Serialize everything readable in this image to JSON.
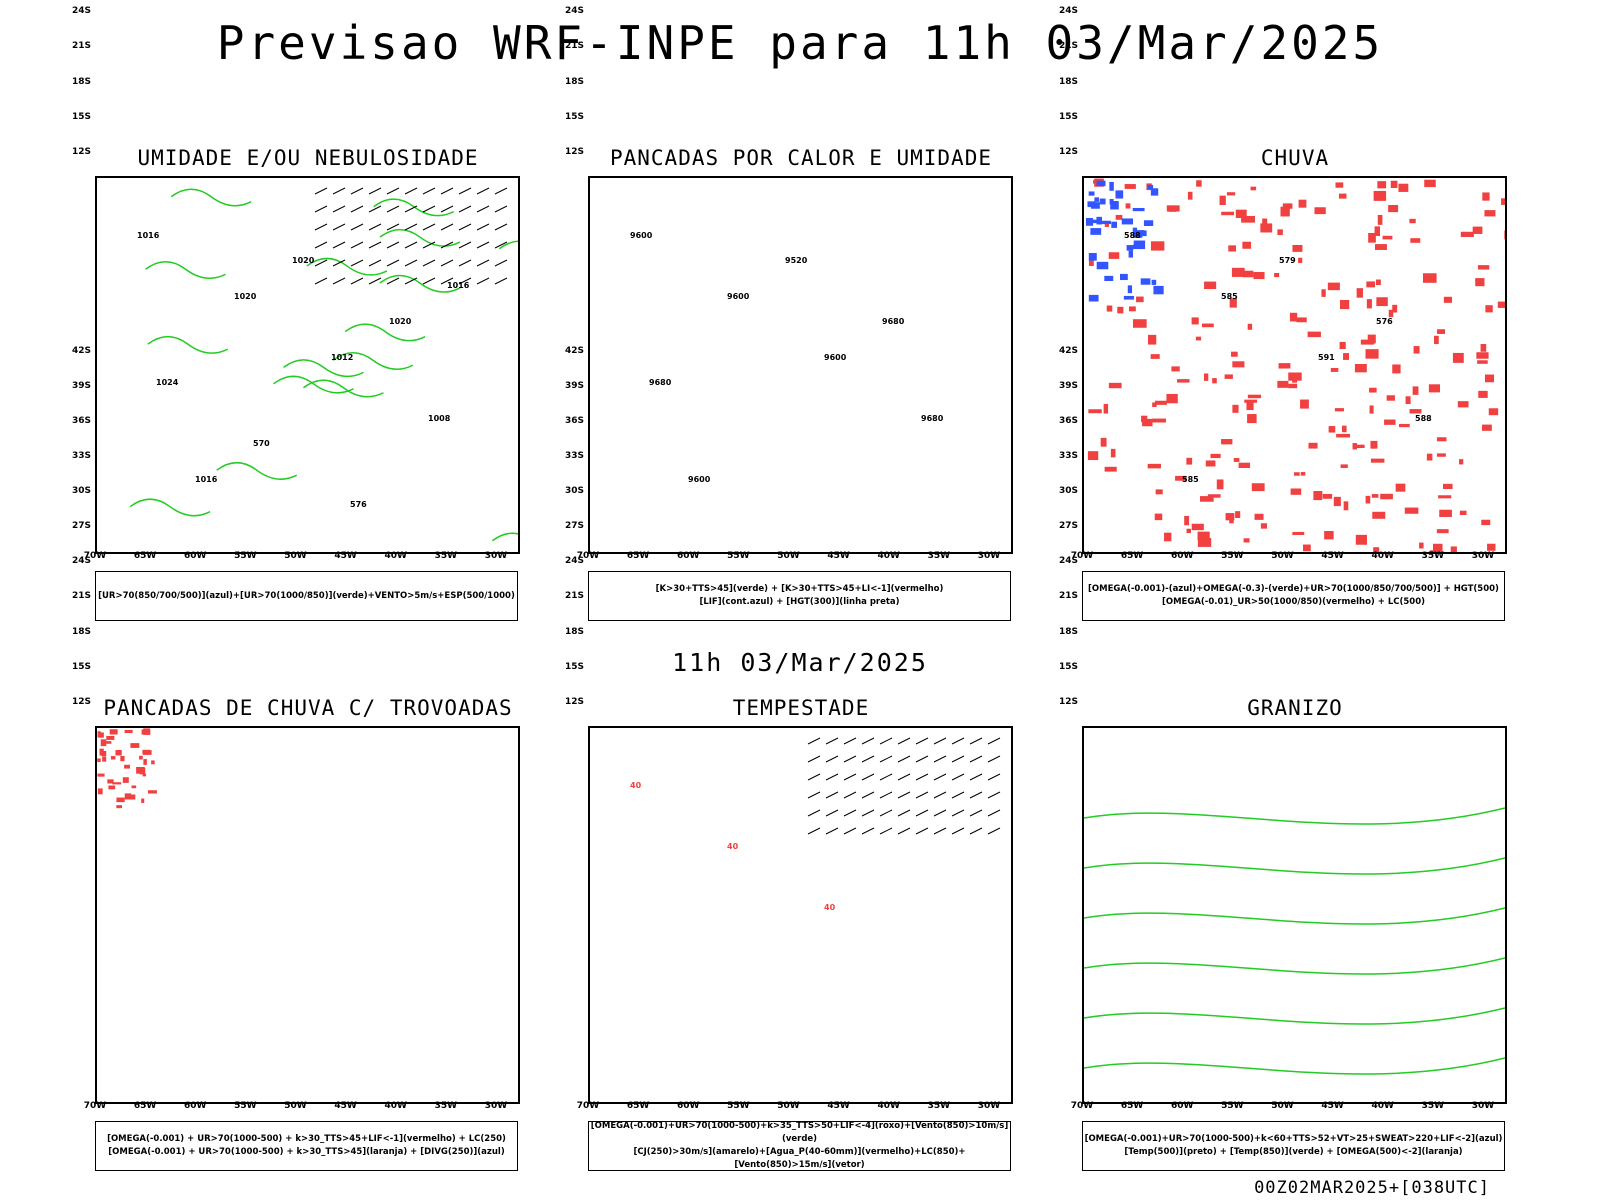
{
  "title": "Previsao WRF-INPE  para 11h 03/Mar/2025",
  "mid_title": "11h 03/Mar/2025",
  "footer": "00Z02MAR2025+[038UTC]",
  "lat_ticks": [
    "12S",
    "15S",
    "18S",
    "21S",
    "24S",
    "27S",
    "30S",
    "33S",
    "36S",
    "39S",
    "42S"
  ],
  "lon_ticks": [
    "70W",
    "65W",
    "60W",
    "55W",
    "50W",
    "45W",
    "40W",
    "35W",
    "30W"
  ],
  "panels": [
    {
      "title": "UMIDADE E/OU NEBULOSIDADE",
      "legend": [
        "[UR>70(850/700/500)](azul)+[UR>70(1000/850)](verde)+VENTO>5m/s+ESP(500/1000)"
      ],
      "contour_labels": [
        "1016",
        "1020",
        "1012",
        "1008",
        "1016",
        "1020",
        "1020",
        "1024",
        "570",
        "576",
        "1016"
      ]
    },
    {
      "title": "PANCADAS POR CALOR E UMIDADE",
      "legend": [
        "[K>30+TTS>45](verde) + [K>30+TTS>45+LI<-1](vermelho)",
        "[LIF](cont.azul) + [HGT(300)](linha preta)"
      ],
      "contour_labels": [
        "9600",
        "9600",
        "9600",
        "9680",
        "9600",
        "9520",
        "9680",
        "9680"
      ]
    },
    {
      "title": "CHUVA",
      "legend": [
        "[OMEGA(-0.001)-(azul)+OMEGA(-0.3)-(verde)+UR>70(1000/850/700/500)] + HGT(500)",
        "[OMEGA(-0.01)_UR>50(1000/850)(vermelho) + LC(500)"
      ],
      "contour_labels": [
        "588",
        "585",
        "591",
        "588",
        "585",
        "579",
        "576"
      ]
    },
    {
      "title": "PANCADAS DE CHUVA C/ TROVOADAS",
      "legend": [
        "[OMEGA(-0.001) + UR>70(1000-500) + k>30_TTS>45+LIF<-1](vermelho) + LC(250)",
        "[OMEGA(-0.001) + UR>70(1000-500) + k>30_TTS>45](laranja) + [DIVG(250)](azul)"
      ],
      "contour_labels": []
    },
    {
      "title": "TEMPESTADE",
      "legend": [
        "[OMEGA(-0.001)+UR>70(1000-500)+k>35_TTS>50+LIF<-4](roxo)+[Vento(850)>10m/s](verde)",
        "[CJ(250)>30m/s](amarelo)+[Agua_P(40-60mm)](vermelho)+LC(850)+[Vento(850)>15m/s](vetor)"
      ],
      "contour_labels": [
        "40",
        "40",
        "40"
      ]
    },
    {
      "title": "GRANIZO",
      "legend": [
        "[OMEGA(-0.001)+UR>70(1000-500)+k<60+TTS>52+VT>25+SWEAT>220+LIF<-2](azul)",
        "[Temp(500)](preto) + [Temp(850)](verde) + [OMEGA(500)<-2](laranja)"
      ],
      "contour_labels": []
    }
  ],
  "colors": {
    "land_border": "#000000",
    "humidity_blue": "#9b9bf0",
    "humidity_green": "#22cc22",
    "red_field": "#f04040",
    "dark_green": "#234d40",
    "blue_line": "#3355ff",
    "yellow_jet": "#d8d020",
    "orange": "#ff8800",
    "purple": "#8a2be2"
  }
}
